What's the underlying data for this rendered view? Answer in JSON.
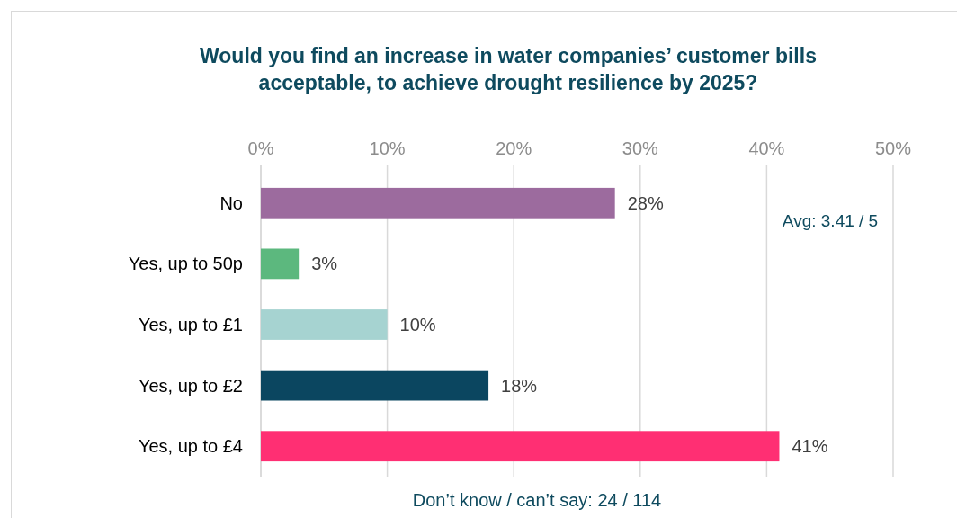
{
  "chart_data": {
    "type": "bar",
    "orientation": "horizontal",
    "title": "Would you find an increase in water companies’ customer bills acceptable, to achieve drought resilience by 2025?",
    "categories": [
      "No",
      "Yes, up to 50p",
      "Yes, up to £1",
      "Yes, up to £2",
      "Yes, up to £4"
    ],
    "values": [
      28,
      3,
      10,
      18,
      41
    ],
    "colors": [
      "#9c6b9e",
      "#5cb87e",
      "#a6d3d1",
      "#0b4660",
      "#ff2f73"
    ],
    "value_labels": [
      "28%",
      "3%",
      "10%",
      "18%",
      "41%"
    ],
    "xlim": [
      0,
      50
    ],
    "xticks": [
      {
        "value": 0,
        "label": "0%"
      },
      {
        "value": 10,
        "label": "10%"
      },
      {
        "value": 20,
        "label": "20%"
      },
      {
        "value": 30,
        "label": "30%"
      },
      {
        "value": 40,
        "label": "40%"
      },
      {
        "value": 50,
        "label": "50%"
      }
    ],
    "grid": "x",
    "annotations": [
      "Avg: 3.41 / 5",
      "Don’t know / can’t say: 24 / 114"
    ]
  }
}
